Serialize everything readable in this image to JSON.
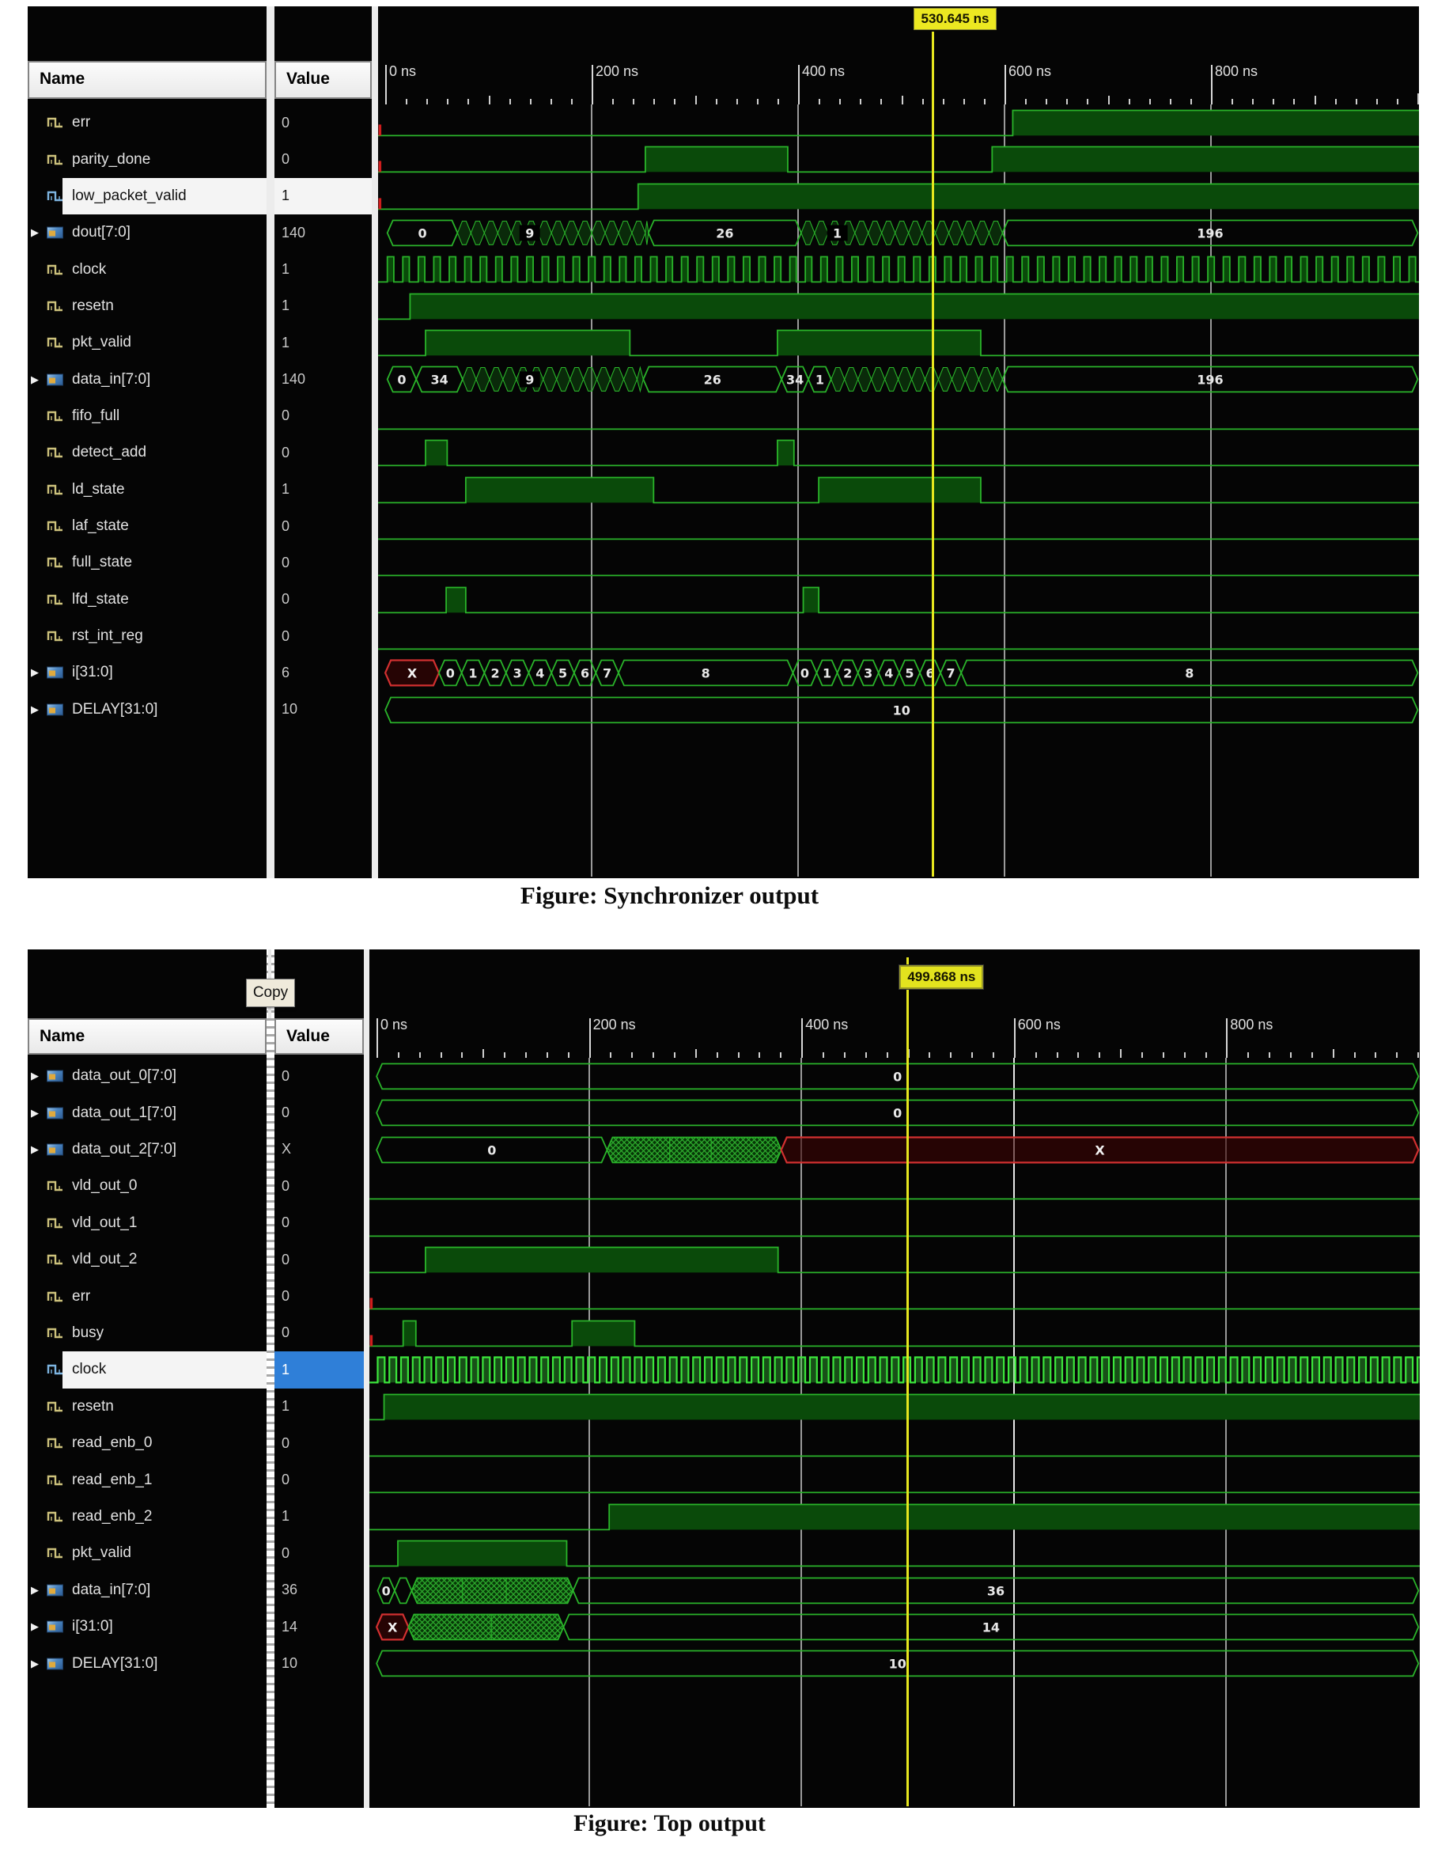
{
  "colors": {
    "wave_green": "#2ab42a",
    "fill_green": "#0a4a0a",
    "bright_clock": "#3ce63c",
    "cursor_yellow": "#e6e61e",
    "x_red": "#d23030",
    "grid_gray": "#9a9a9a",
    "select_blue": "#2f7fd8"
  },
  "figure1": {
    "caption": "Figure: Synchronizer output",
    "cursor": {
      "label": "530.645 ns",
      "ns": 530.645
    },
    "columns": {
      "name": "Name",
      "value": "Value"
    },
    "timeline": {
      "labels": [
        "0 ns",
        "200 ns",
        "400 ns",
        "600 ns",
        "800 ns"
      ],
      "tick_ns": [
        0,
        200,
        400,
        600,
        800
      ]
    },
    "signals": [
      {
        "name": "err",
        "value": "0",
        "kind": "scalar",
        "red_tick": true,
        "highs": [
          [
            608,
            1010
          ]
        ]
      },
      {
        "name": "parity_done",
        "value": "0",
        "kind": "scalar",
        "red_tick": true,
        "highs": [
          [
            252,
            390
          ],
          [
            588,
            1010
          ]
        ]
      },
      {
        "name": "low_packet_valid",
        "value": "1",
        "kind": "scalar",
        "red_tick": true,
        "selected": true,
        "highs": [
          [
            245,
            1010
          ]
        ]
      },
      {
        "name": "dout[7:0]",
        "value": "140",
        "kind": "bus",
        "segments": [
          {
            "t0": 2,
            "t1": 70,
            "label": "0",
            "type": "val"
          },
          {
            "t0": 70,
            "t1": 255,
            "label": "9",
            "type": "churn",
            "label_ns": 140
          },
          {
            "t0": 255,
            "t1": 403,
            "label": "26",
            "type": "val"
          },
          {
            "t0": 403,
            "t1": 598,
            "label": "1",
            "type": "churn",
            "label_ns": 438
          },
          {
            "t0": 598,
            "t1": 1010,
            "label": "196",
            "type": "val"
          }
        ]
      },
      {
        "name": "clock",
        "value": "1",
        "kind": "clock",
        "period": 15,
        "duty": 0.42,
        "start": 2,
        "end": 1008
      },
      {
        "name": "resetn",
        "value": "1",
        "kind": "scalar",
        "highs": [
          [
            24,
            1010
          ]
        ]
      },
      {
        "name": "pkt_valid",
        "value": "1",
        "kind": "scalar",
        "highs": [
          [
            39,
            237
          ],
          [
            380,
            577
          ]
        ]
      },
      {
        "name": "data_in[7:0]",
        "value": "140",
        "kind": "bus",
        "segments": [
          {
            "t0": 2,
            "t1": 30,
            "label": "0",
            "type": "val"
          },
          {
            "t0": 30,
            "t1": 75,
            "label": "34",
            "type": "val"
          },
          {
            "t0": 75,
            "t1": 250,
            "label": "9",
            "type": "churn",
            "label_ns": 140
          },
          {
            "t0": 250,
            "t1": 384,
            "label": "26",
            "type": "val"
          },
          {
            "t0": 384,
            "t1": 410,
            "label": "34",
            "type": "val"
          },
          {
            "t0": 410,
            "t1": 432,
            "label": "1",
            "type": "val"
          },
          {
            "t0": 432,
            "t1": 598,
            "label": "",
            "type": "churn"
          },
          {
            "t0": 598,
            "t1": 1010,
            "label": "196",
            "type": "val"
          }
        ]
      },
      {
        "name": "fifo_full",
        "value": "0",
        "kind": "scalar",
        "highs": []
      },
      {
        "name": "detect_add",
        "value": "0",
        "kind": "scalar",
        "highs": [
          [
            39,
            60
          ],
          [
            380,
            396
          ]
        ]
      },
      {
        "name": "ld_state",
        "value": "1",
        "kind": "scalar",
        "highs": [
          [
            78,
            260
          ],
          [
            420,
            577
          ]
        ]
      },
      {
        "name": "laf_state",
        "value": "0",
        "kind": "scalar",
        "highs": []
      },
      {
        "name": "full_state",
        "value": "0",
        "kind": "scalar",
        "highs": []
      },
      {
        "name": "lfd_state",
        "value": "0",
        "kind": "scalar",
        "highs": [
          [
            59,
            78
          ],
          [
            405,
            420
          ]
        ]
      },
      {
        "name": "rst_int_reg",
        "value": "0",
        "kind": "scalar",
        "highs": []
      },
      {
        "name": "i[31:0]",
        "value": "6",
        "kind": "bus",
        "segments": [
          {
            "t0": 0,
            "t1": 52,
            "label": "X",
            "type": "x"
          },
          {
            "t0": 52,
            "t1": 74,
            "label": "0",
            "type": "val"
          },
          {
            "t0": 74,
            "t1": 96,
            "label": "1",
            "type": "val"
          },
          {
            "t0": 96,
            "t1": 117,
            "label": "2",
            "type": "val"
          },
          {
            "t0": 117,
            "t1": 139,
            "label": "3",
            "type": "val"
          },
          {
            "t0": 139,
            "t1": 161,
            "label": "4",
            "type": "val"
          },
          {
            "t0": 161,
            "t1": 183,
            "label": "5",
            "type": "val"
          },
          {
            "t0": 183,
            "t1": 204,
            "label": "6",
            "type": "val"
          },
          {
            "t0": 204,
            "t1": 226,
            "label": "7",
            "type": "val"
          },
          {
            "t0": 226,
            "t1": 395,
            "label": "8",
            "type": "val"
          },
          {
            "t0": 395,
            "t1": 418,
            "label": "0",
            "type": "val"
          },
          {
            "t0": 418,
            "t1": 438,
            "label": "1",
            "type": "val"
          },
          {
            "t0": 438,
            "t1": 458,
            "label": "2",
            "type": "val"
          },
          {
            "t0": 458,
            "t1": 478,
            "label": "3",
            "type": "val"
          },
          {
            "t0": 478,
            "t1": 498,
            "label": "4",
            "type": "val"
          },
          {
            "t0": 498,
            "t1": 518,
            "label": "5",
            "type": "val"
          },
          {
            "t0": 518,
            "t1": 538,
            "label": "6",
            "type": "val"
          },
          {
            "t0": 538,
            "t1": 558,
            "label": "7",
            "type": "val"
          },
          {
            "t0": 558,
            "t1": 1010,
            "label": "8",
            "type": "val"
          }
        ]
      },
      {
        "name": "DELAY[31:0]",
        "value": "10",
        "kind": "bus",
        "segments": [
          {
            "t0": 0,
            "t1": 1010,
            "label": "10",
            "type": "val"
          }
        ]
      }
    ]
  },
  "figure2": {
    "caption": "Figure: Top output",
    "copy_button": "Copy",
    "cursor": {
      "label": "499.868 ns",
      "ns": 499.868
    },
    "columns": {
      "name": "Name",
      "value": "Value"
    },
    "timeline": {
      "labels": [
        "0 ns",
        "200 ns",
        "400 ns",
        "600 ns",
        "800 ns"
      ],
      "tick_ns": [
        0,
        200,
        400,
        600,
        800
      ]
    },
    "signals": [
      {
        "name": "data_out_0[7:0]",
        "value": "0",
        "kind": "bus",
        "segments": [
          {
            "t0": 0,
            "t1": 990,
            "label": "0",
            "type": "val"
          }
        ]
      },
      {
        "name": "data_out_1[7:0]",
        "value": "0",
        "kind": "bus",
        "segments": [
          {
            "t0": 0,
            "t1": 990,
            "label": "0",
            "type": "val"
          }
        ]
      },
      {
        "name": "data_out_2[7:0]",
        "value": "X",
        "kind": "bus",
        "segments": [
          {
            "t0": 0,
            "t1": 217,
            "label": "0",
            "type": "val"
          },
          {
            "t0": 217,
            "t1": 381,
            "label": "",
            "type": "hatch",
            "div": [
              276,
              315
            ]
          },
          {
            "t0": 381,
            "t1": 990,
            "label": "X",
            "type": "x"
          }
        ]
      },
      {
        "name": "vld_out_0",
        "value": "0",
        "kind": "scalar",
        "highs": []
      },
      {
        "name": "vld_out_1",
        "value": "0",
        "kind": "scalar",
        "highs": []
      },
      {
        "name": "vld_out_2",
        "value": "0",
        "kind": "scalar",
        "highs": [
          [
            46,
            378
          ]
        ]
      },
      {
        "name": "err",
        "value": "0",
        "kind": "scalar",
        "red_tick": true,
        "highs": []
      },
      {
        "name": "busy",
        "value": "0",
        "kind": "scalar",
        "red_tick": true,
        "highs": [
          [
            25,
            37
          ],
          [
            184,
            243
          ]
        ]
      },
      {
        "name": "clock",
        "value": "1",
        "kind": "clock",
        "selected": true,
        "bright": true,
        "period": 11,
        "duty": 0.6,
        "start": 1,
        "end": 984
      },
      {
        "name": "resetn",
        "value": "1",
        "kind": "scalar",
        "highs": [
          [
            7,
            990
          ]
        ]
      },
      {
        "name": "read_enb_0",
        "value": "0",
        "kind": "scalar",
        "highs": []
      },
      {
        "name": "read_enb_1",
        "value": "0",
        "kind": "scalar",
        "highs": []
      },
      {
        "name": "read_enb_2",
        "value": "1",
        "kind": "scalar",
        "highs": [
          [
            219,
            990
          ]
        ]
      },
      {
        "name": "pkt_valid",
        "value": "0",
        "kind": "scalar",
        "highs": [
          [
            20,
            179
          ]
        ]
      },
      {
        "name": "data_in[7:0]",
        "value": "36",
        "kind": "bus",
        "segments": [
          {
            "t0": 1,
            "t1": 17,
            "label": "0",
            "type": "val"
          },
          {
            "t0": 17,
            "t1": 33,
            "label": "",
            "type": "val"
          },
          {
            "t0": 33,
            "t1": 185,
            "label": "",
            "type": "hatch",
            "div": [
              81,
              122
            ]
          },
          {
            "t0": 185,
            "t1": 990,
            "label": "36",
            "type": "val"
          }
        ]
      },
      {
        "name": "i[31:0]",
        "value": "14",
        "kind": "bus",
        "segments": [
          {
            "t0": 0,
            "t1": 30,
            "label": "X",
            "type": "x"
          },
          {
            "t0": 30,
            "t1": 176,
            "label": "",
            "type": "hatch",
            "div": [
              108
            ]
          },
          {
            "t0": 176,
            "t1": 990,
            "label": "14",
            "type": "val"
          }
        ]
      },
      {
        "name": "DELAY[31:0]",
        "value": "10",
        "kind": "bus",
        "segments": [
          {
            "t0": 0,
            "t1": 990,
            "label": "10",
            "type": "val"
          }
        ]
      }
    ]
  }
}
